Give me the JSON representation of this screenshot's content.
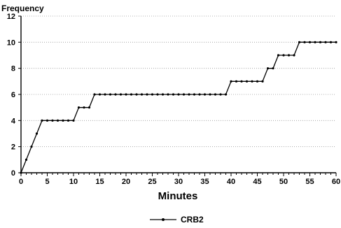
{
  "chart_data": {
    "type": "line",
    "title": "",
    "xlabel": "Minutes",
    "ylabel": "Frequency",
    "xlim": [
      0,
      60
    ],
    "ylim": [
      0,
      12
    ],
    "x_ticks": [
      0,
      5,
      10,
      15,
      20,
      25,
      30,
      35,
      40,
      45,
      50,
      55,
      60
    ],
    "y_ticks": [
      0,
      2,
      4,
      6,
      8,
      10,
      12
    ],
    "grid": "horizontal dotted",
    "legend": "bottom-center",
    "series": [
      {
        "name": "CRB2",
        "color": "#000000",
        "marker": "dot",
        "points": [
          [
            0,
            0
          ],
          [
            1,
            1
          ],
          [
            2,
            2
          ],
          [
            3,
            3
          ],
          [
            4,
            4
          ],
          [
            5,
            4
          ],
          [
            6,
            4
          ],
          [
            7,
            4
          ],
          [
            8,
            4
          ],
          [
            9,
            4
          ],
          [
            10,
            4
          ],
          [
            11,
            5
          ],
          [
            12,
            5
          ],
          [
            13,
            5
          ],
          [
            14,
            6
          ],
          [
            15,
            6
          ],
          [
            16,
            6
          ],
          [
            17,
            6
          ],
          [
            18,
            6
          ],
          [
            19,
            6
          ],
          [
            20,
            6
          ],
          [
            21,
            6
          ],
          [
            22,
            6
          ],
          [
            23,
            6
          ],
          [
            24,
            6
          ],
          [
            25,
            6
          ],
          [
            26,
            6
          ],
          [
            27,
            6
          ],
          [
            28,
            6
          ],
          [
            29,
            6
          ],
          [
            30,
            6
          ],
          [
            31,
            6
          ],
          [
            32,
            6
          ],
          [
            33,
            6
          ],
          [
            34,
            6
          ],
          [
            35,
            6
          ],
          [
            36,
            6
          ],
          [
            37,
            6
          ],
          [
            38,
            6
          ],
          [
            39,
            6
          ],
          [
            40,
            7
          ],
          [
            41,
            7
          ],
          [
            42,
            7
          ],
          [
            43,
            7
          ],
          [
            44,
            7
          ],
          [
            45,
            7
          ],
          [
            46,
            7
          ],
          [
            47,
            8
          ],
          [
            48,
            8
          ],
          [
            49,
            9
          ],
          [
            50,
            9
          ],
          [
            51,
            9
          ],
          [
            52,
            9
          ],
          [
            53,
            10
          ],
          [
            54,
            10
          ],
          [
            55,
            10
          ],
          [
            56,
            10
          ],
          [
            57,
            10
          ],
          [
            58,
            10
          ],
          [
            59,
            10
          ],
          [
            60,
            10
          ]
        ]
      }
    ]
  }
}
